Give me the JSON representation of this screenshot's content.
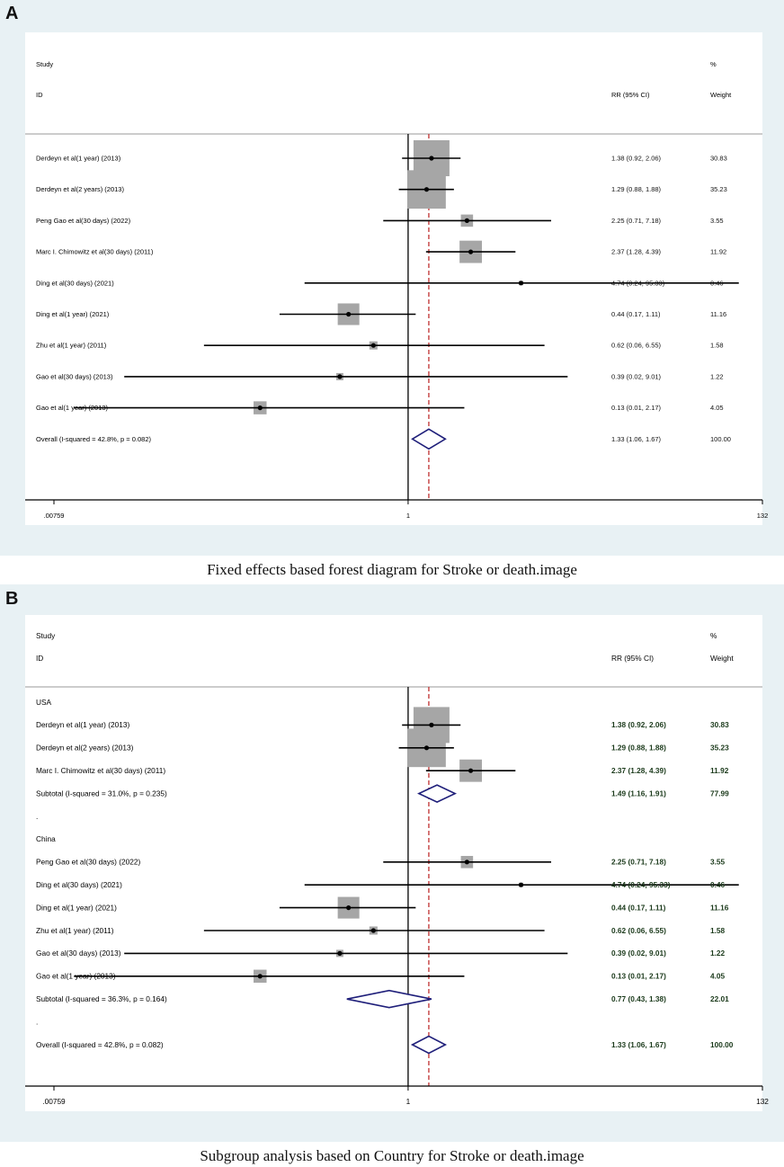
{
  "colors": {
    "panel_bg": "#e8f1f4",
    "box_fill": "#a6a6a6",
    "line": "#000000",
    "diamond": "#1f1f7a",
    "overall_line": "#c03030",
    "header_rule": "#999999"
  },
  "chart_data": [
    {
      "type": "forest",
      "panel_label": "A",
      "caption": "Fixed  effects based forest diagram for Stroke or death.image",
      "header": {
        "study": "Study",
        "id": "ID",
        "effect": "RR (95% CI)",
        "pct": "%",
        "weight": "Weight"
      },
      "scale": "log",
      "xlim": [
        0.00759,
        132
      ],
      "ticks": [
        {
          "value": 0.00759,
          "label": ".00759"
        },
        {
          "value": 1,
          "label": "1"
        },
        {
          "value": 132,
          "label": "132"
        }
      ],
      "null_line": 1,
      "overall_line": 1.33,
      "rows": [
        {
          "kind": "study",
          "label": "Derdeyn et al(1 year)  (2013)",
          "rr": 1.38,
          "lo": 0.92,
          "hi": 2.06,
          "effect_text": "1.38 (0.92, 2.06)",
          "weight": 30.83,
          "weight_text": "30.83"
        },
        {
          "kind": "study",
          "label": "Derdeyn et al(2 years)  (2013)",
          "rr": 1.29,
          "lo": 0.88,
          "hi": 1.88,
          "effect_text": "1.29 (0.88, 1.88)",
          "weight": 35.23,
          "weight_text": "35.23"
        },
        {
          "kind": "study",
          "label": "Peng Gao et al(30 days)  (2022)",
          "rr": 2.25,
          "lo": 0.71,
          "hi": 7.18,
          "effect_text": "2.25 (0.71, 7.18)",
          "weight": 3.55,
          "weight_text": "3.55"
        },
        {
          "kind": "study",
          "label": "Marc I. Chimowitz et al(30 days)  (2011)",
          "rr": 2.37,
          "lo": 1.28,
          "hi": 4.39,
          "effect_text": "2.37 (1.28, 4.39)",
          "weight": 11.92,
          "weight_text": "11.92"
        },
        {
          "kind": "study",
          "label": "Ding et al(30 days)  (2021)",
          "rr": 4.74,
          "lo": 0.24,
          "hi": 95.33,
          "effect_text": "4.74 (0.24, 95.33)",
          "weight": 0.46,
          "weight_text": "0.46"
        },
        {
          "kind": "study",
          "label": "Ding et al(1 year) (2021)",
          "rr": 0.44,
          "lo": 0.17,
          "hi": 1.11,
          "effect_text": "0.44 (0.17, 1.11)",
          "weight": 11.16,
          "weight_text": "11.16"
        },
        {
          "kind": "study",
          "label": "Zhu et al(1 year)  (2011)",
          "rr": 0.62,
          "lo": 0.06,
          "hi": 6.55,
          "effect_text": "0.62 (0.06, 6.55)",
          "weight": 1.58,
          "weight_text": "1.58"
        },
        {
          "kind": "study",
          "label": "Gao et al(30 days)  (2013)",
          "rr": 0.39,
          "lo": 0.02,
          "hi": 9.01,
          "effect_text": "0.39 (0.02, 9.01)",
          "weight": 1.22,
          "weight_text": "1.22"
        },
        {
          "kind": "study",
          "label": "Gao et al(1 year)  (2013)",
          "rr": 0.13,
          "lo": 0.01,
          "hi": 2.17,
          "effect_text": "0.13 (0.01, 2.17)",
          "weight": 4.05,
          "weight_text": "4.05"
        },
        {
          "kind": "overall",
          "label": "Overall  (I-squared = 42.8%, p = 0.082)",
          "rr": 1.33,
          "lo": 1.06,
          "hi": 1.67,
          "effect_text": "1.33 (1.06, 1.67)",
          "weight": 100,
          "weight_text": "100.00"
        }
      ]
    },
    {
      "type": "forest",
      "panel_label": "B",
      "caption": "Subgroup analysis based on Country for Stroke or death.image",
      "header": {
        "study": "Study",
        "id": "ID",
        "effect": "RR (95% CI)",
        "pct": "%",
        "weight": "Weight"
      },
      "scale": "log",
      "xlim": [
        0.00759,
        132
      ],
      "ticks": [
        {
          "value": 0.00759,
          "label": ".00759"
        },
        {
          "value": 1,
          "label": "1"
        },
        {
          "value": 132,
          "label": "132"
        }
      ],
      "null_line": 1,
      "overall_line": 1.33,
      "rows": [
        {
          "kind": "group",
          "label": "USA"
        },
        {
          "kind": "study",
          "label": "Derdeyn et al(1 year)  (2013)",
          "rr": 1.38,
          "lo": 0.92,
          "hi": 2.06,
          "effect_text": "1.38 (0.92, 2.06)",
          "weight": 30.83,
          "weight_text": "30.83"
        },
        {
          "kind": "study",
          "label": "Derdeyn et al(2 years)  (2013)",
          "rr": 1.29,
          "lo": 0.88,
          "hi": 1.88,
          "effect_text": "1.29 (0.88, 1.88)",
          "weight": 35.23,
          "weight_text": "35.23"
        },
        {
          "kind": "study",
          "label": "Marc I. Chimowitz et al(30 days)  (2011)",
          "rr": 2.37,
          "lo": 1.28,
          "hi": 4.39,
          "effect_text": "2.37 (1.28, 4.39)",
          "weight": 11.92,
          "weight_text": "11.92"
        },
        {
          "kind": "subtotal",
          "label": "Subtotal  (I-squared = 31.0%, p = 0.235)",
          "rr": 1.49,
          "lo": 1.16,
          "hi": 1.91,
          "effect_text": "1.49 (1.16, 1.91)",
          "weight": 77.99,
          "weight_text": "77.99"
        },
        {
          "kind": "spacer",
          "label": "."
        },
        {
          "kind": "group",
          "label": "China"
        },
        {
          "kind": "study",
          "label": "Peng Gao et al(30 days)  (2022)",
          "rr": 2.25,
          "lo": 0.71,
          "hi": 7.18,
          "effect_text": "2.25 (0.71, 7.18)",
          "weight": 3.55,
          "weight_text": "3.55"
        },
        {
          "kind": "study",
          "label": "Ding et al(30 days)  (2021)",
          "rr": 4.74,
          "lo": 0.24,
          "hi": 95.33,
          "effect_text": "4.74 (0.24, 95.33)",
          "weight": 0.46,
          "weight_text": "0.46"
        },
        {
          "kind": "study",
          "label": "Ding et al(1 year) (2021)",
          "rr": 0.44,
          "lo": 0.17,
          "hi": 1.11,
          "effect_text": "0.44 (0.17, 1.11)",
          "weight": 11.16,
          "weight_text": "11.16"
        },
        {
          "kind": "study",
          "label": "Zhu et al(1 year)  (2011)",
          "rr": 0.62,
          "lo": 0.06,
          "hi": 6.55,
          "effect_text": "0.62 (0.06, 6.55)",
          "weight": 1.58,
          "weight_text": "1.58"
        },
        {
          "kind": "study",
          "label": "Gao et al(30 days)  (2013)",
          "rr": 0.39,
          "lo": 0.02,
          "hi": 9.01,
          "effect_text": "0.39 (0.02, 9.01)",
          "weight": 1.22,
          "weight_text": "1.22"
        },
        {
          "kind": "study",
          "label": "Gao et al(1 year)  (2013)",
          "rr": 0.13,
          "lo": 0.01,
          "hi": 2.17,
          "effect_text": "0.13 (0.01, 2.17)",
          "weight": 4.05,
          "weight_text": "4.05"
        },
        {
          "kind": "subtotal",
          "label": "Subtotal  (I-squared = 36.3%, p = 0.164)",
          "rr": 0.77,
          "lo": 0.43,
          "hi": 1.38,
          "effect_text": "0.77 (0.43, 1.38)",
          "weight": 22.01,
          "weight_text": "22.01"
        },
        {
          "kind": "spacer",
          "label": "."
        },
        {
          "kind": "overall",
          "label": "Overall  (I-squared = 42.8%, p = 0.082)",
          "rr": 1.33,
          "lo": 1.06,
          "hi": 1.67,
          "effect_text": "1.33 (1.06, 1.67)",
          "weight": 100,
          "weight_text": "100.00"
        }
      ]
    }
  ]
}
